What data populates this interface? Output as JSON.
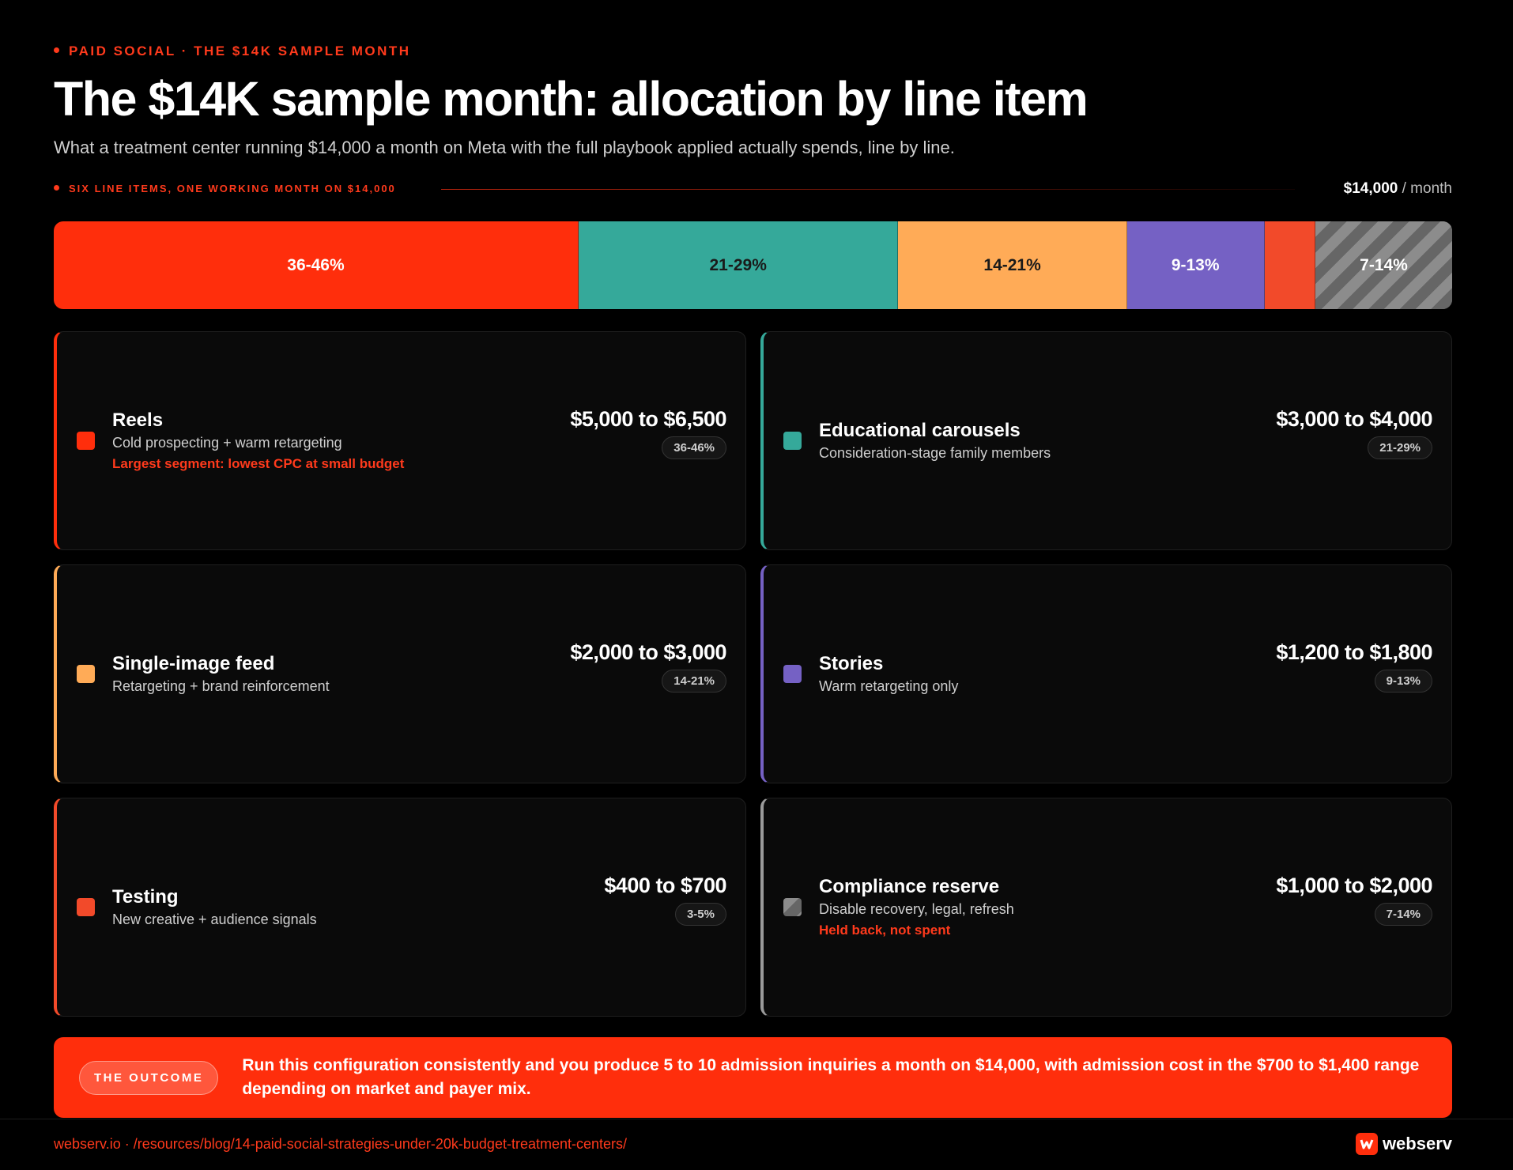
{
  "eyebrow": "PAID SOCIAL · THE $14K SAMPLE MONTH",
  "title": "The $14K sample month: allocation by line item",
  "subtitle": "What a treatment center running $14,000 a month on Meta with the full playbook applied actually spends, line by line.",
  "bar_caption": "SIX LINE ITEMS, ONE WORKING MONTH ON $14,000",
  "total": "$14,000",
  "total_unit": "/ month",
  "items": [
    {
      "name": "Reels",
      "description": "Cold prospecting + warm retargeting",
      "note": "Largest segment: lowest CPC at small budget",
      "amount": "$5,000 to $6,500",
      "range": [
        5000,
        6500
      ],
      "share": "36-46%",
      "color": "#ff2e0c",
      "text_color": "#ffffff"
    },
    {
      "name": "Educational carousels",
      "description": "Consideration-stage family members",
      "amount": "$3,000 to $4,000",
      "range": [
        3000,
        4000
      ],
      "share": "21-29%",
      "color": "#35a99a",
      "text_color": "#1a1a1a"
    },
    {
      "name": "Single-image feed",
      "description": "Retargeting + brand reinforcement",
      "amount": "$2,000 to $3,000",
      "range": [
        2000,
        3000
      ],
      "share": "14-21%",
      "color": "#ffab57",
      "text_color": "#1a1a1a"
    },
    {
      "name": "Stories",
      "description": "Warm retargeting only",
      "amount": "$1,200 to $1,800",
      "range": [
        1200,
        1800
      ],
      "share": "9-13%",
      "color": "#7561c4",
      "text_color": "#ffffff"
    },
    {
      "name": "Testing",
      "description": "New creative + audience signals",
      "amount": "$400 to $700",
      "range": [
        400,
        700
      ],
      "share": "3-5%",
      "color": "#f24a2a",
      "text_color": "#ffffff"
    },
    {
      "name": "Compliance reserve",
      "description": "Disable recovery, legal, refresh",
      "note": "Held back, not spent",
      "amount": "$1,000 to $2,000",
      "range": [
        1000,
        2000
      ],
      "share": "7-14%",
      "color": "#8c8c8c",
      "pattern": "hatch",
      "text_color": "#ffffff"
    }
  ],
  "outcome": {
    "label": "THE OUTCOME",
    "text": "Run this configuration consistently and you produce 5 to 10 admission inquiries a month on $14,000, with admission cost in the $700 to $1,400 range depending on market and payer mix."
  },
  "footer": {
    "url": "webserv.io · /resources/blog/14-paid-social-strategies-under-20k-budget-treatment-centers/",
    "brand": "webserv"
  }
}
